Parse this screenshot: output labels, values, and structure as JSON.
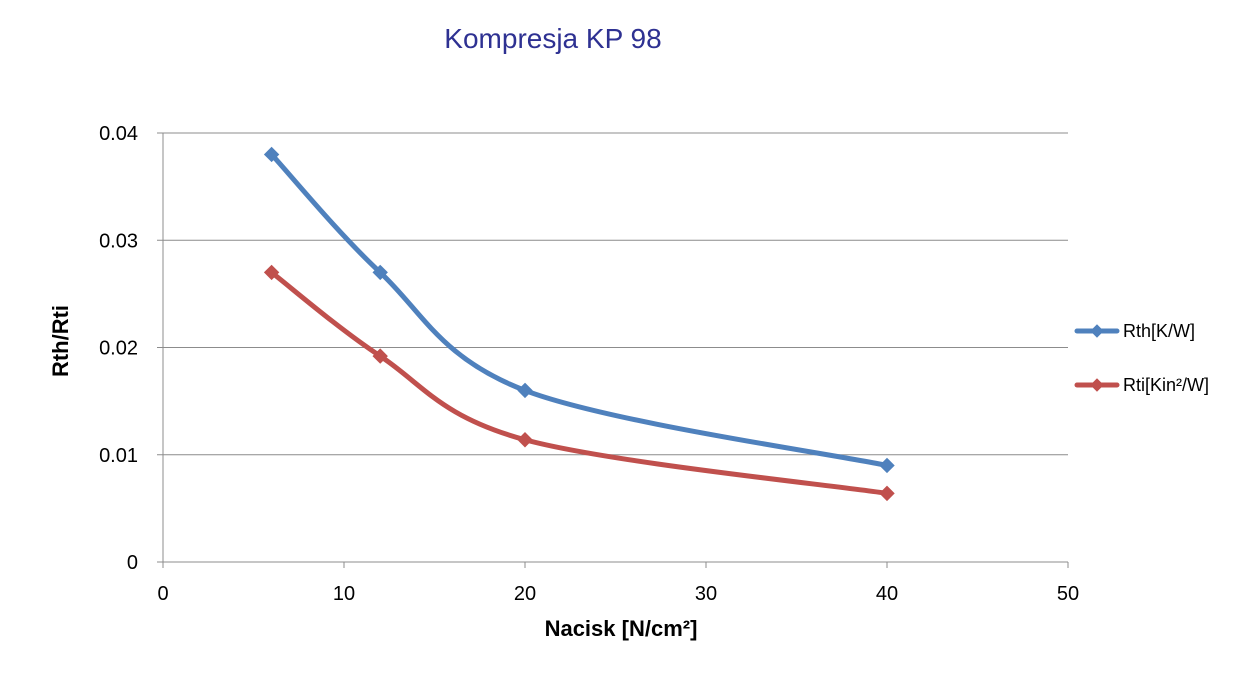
{
  "chart_data": {
    "type": "scatter",
    "title": "Kompresja KP 98",
    "xlabel": "Nacisk [N/cm²]",
    "ylabel": "Rth/Rti",
    "xlim": [
      0,
      50
    ],
    "ylim": [
      0,
      0.04
    ],
    "x_ticks": [
      "0",
      "10",
      "20",
      "30",
      "40",
      "50"
    ],
    "y_ticks": [
      "0",
      "0.01",
      "0.02",
      "0.03",
      "0.04"
    ],
    "grid": "horizontal",
    "legend_position": "right",
    "smooth_lines": true,
    "series": [
      {
        "name": "Rth[K/W]",
        "color": "#4F81BD",
        "marker": "diamond",
        "points": [
          [
            6,
            0.038
          ],
          [
            12,
            0.027
          ],
          [
            20,
            0.016
          ],
          [
            40,
            0.009
          ]
        ]
      },
      {
        "name": "Rti[Kin²/W]",
        "color": "#C0504D",
        "marker": "diamond",
        "points": [
          [
            6,
            0.027
          ],
          [
            12,
            0.0192
          ],
          [
            20,
            0.0114
          ],
          [
            40,
            0.0064
          ]
        ]
      }
    ]
  }
}
